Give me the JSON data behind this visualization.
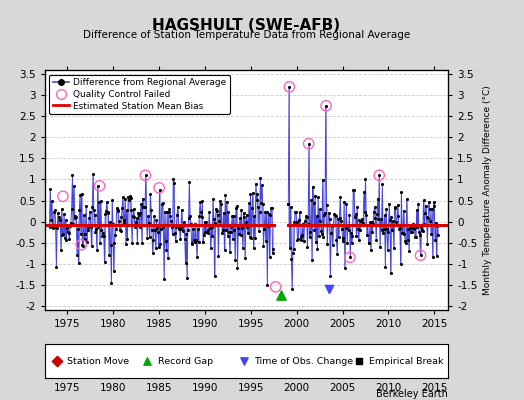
{
  "title": "HAGSHULT (SWE-AFB)",
  "subtitle": "Difference of Station Temperature Data from Regional Average",
  "ylabel_right": "Monthly Temperature Anomaly Difference (°C)",
  "xlim": [
    1972.5,
    2016.5
  ],
  "ylim": [
    -2.1,
    3.6
  ],
  "yticks": [
    -2,
    -1.5,
    -1,
    -0.5,
    0,
    0.5,
    1,
    1.5,
    2,
    2.5,
    3,
    3.5
  ],
  "xticks": [
    1975,
    1980,
    1985,
    1990,
    1995,
    2000,
    2005,
    2010,
    2015
  ],
  "bias_value_pre": -0.08,
  "bias_value_post": -0.08,
  "gap_start": 1997.5,
  "gap_end": 1999.0,
  "record_gap_x": 1998.25,
  "time_obs_change_x": 2003.5,
  "qc_failed_circles": [
    [
      1974.5,
      0.6
    ],
    [
      1976.5,
      -0.55
    ],
    [
      1978.5,
      0.85
    ],
    [
      1983.5,
      1.1
    ],
    [
      1985.0,
      0.8
    ],
    [
      1997.7,
      -1.55
    ],
    [
      1999.2,
      3.2
    ],
    [
      2001.3,
      1.85
    ],
    [
      2003.2,
      2.75
    ],
    [
      2005.8,
      -0.85
    ],
    [
      2009.0,
      1.1
    ],
    [
      2013.5,
      -0.8
    ]
  ],
  "background_color": "#d8d8d8",
  "plot_bg_color": "#ffffff",
  "line_color": "#4444dd",
  "stem_color": "#aaaaee",
  "bias_color": "#dd0000",
  "watermark": "Berkeley Earth",
  "seed1": 42,
  "seed2": 99
}
